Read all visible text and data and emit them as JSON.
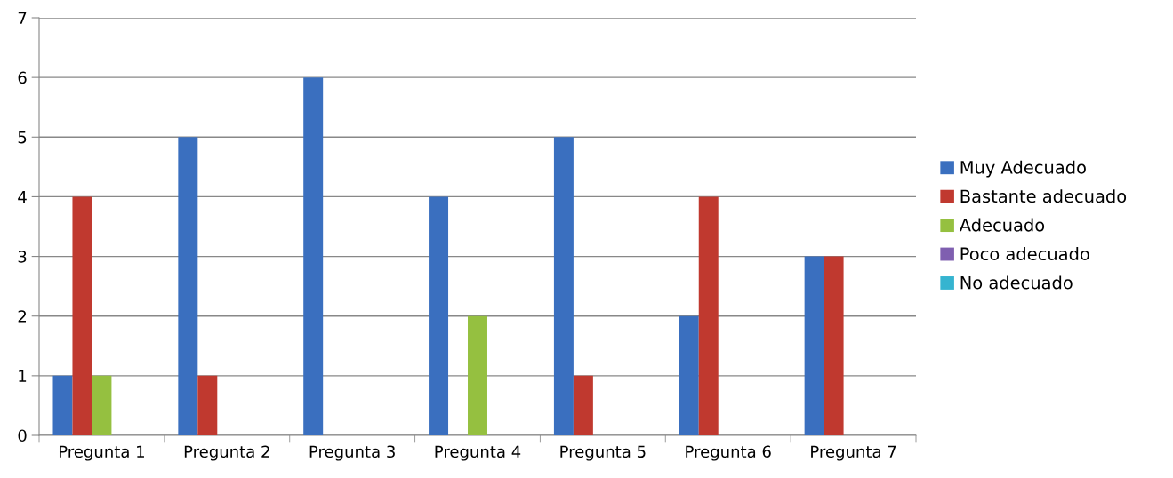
{
  "chart_data": {
    "type": "bar",
    "categories": [
      "Pregunta 1",
      "Pregunta 2",
      "Pregunta 3",
      "Pregunta 4",
      "Pregunta 5",
      "Pregunta 6",
      "Pregunta 7"
    ],
    "series": [
      {
        "name": "Muy Adecuado",
        "color": "#3a6fbf",
        "values": [
          1,
          5,
          6,
          4,
          5,
          2,
          3
        ]
      },
      {
        "name": "Bastante adecuado",
        "color": "#c0392f",
        "values": [
          4,
          1,
          0,
          0,
          1,
          4,
          3
        ]
      },
      {
        "name": "Adecuado",
        "color": "#95c040",
        "values": [
          1,
          0,
          0,
          2,
          0,
          0,
          0
        ]
      },
      {
        "name": "Poco adecuado",
        "color": "#7f5fb0",
        "values": [
          0,
          0,
          0,
          0,
          0,
          0,
          0
        ]
      },
      {
        "name": "No adecuado",
        "color": "#35b4d0",
        "values": [
          0,
          0,
          0,
          0,
          0,
          0,
          0
        ]
      }
    ],
    "ylim": [
      0,
      7
    ],
    "yticks": [
      0,
      1,
      2,
      3,
      4,
      5,
      6,
      7
    ],
    "grid": "y",
    "legend": "right"
  }
}
